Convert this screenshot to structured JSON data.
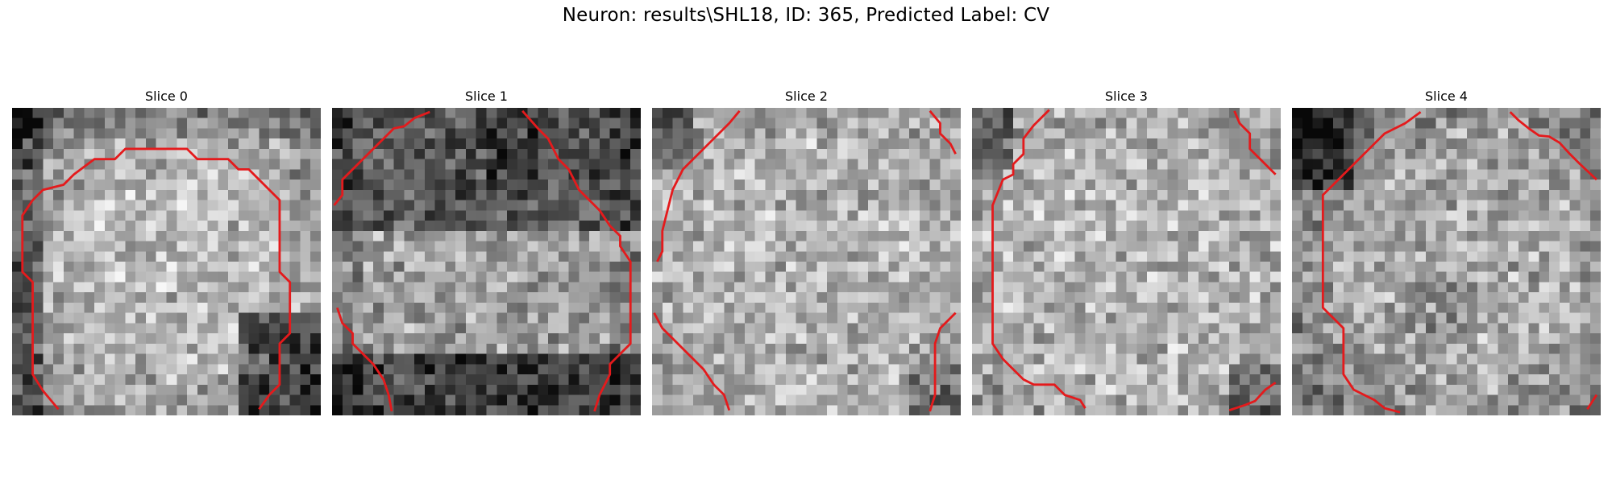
{
  "figure": {
    "suptitle": "Neuron: results\\SHL18, ID: 365, Predicted Label: CV"
  },
  "slices": [
    {
      "title": "Slice 0",
      "texture": "bright-soma-ring",
      "seed": 11
    },
    {
      "title": "Slice 1",
      "texture": "dark-top-bright-bottom",
      "seed": 23
    },
    {
      "title": "Slice 2",
      "texture": "uniform-bright",
      "seed": 37
    },
    {
      "title": "Slice 3",
      "texture": "uniform-bright",
      "seed": 41
    },
    {
      "title": "Slice 4",
      "texture": "bright-ring-dark-corner",
      "seed": 59
    }
  ],
  "contour_color": "#e41a1c",
  "colormap": "gray"
}
